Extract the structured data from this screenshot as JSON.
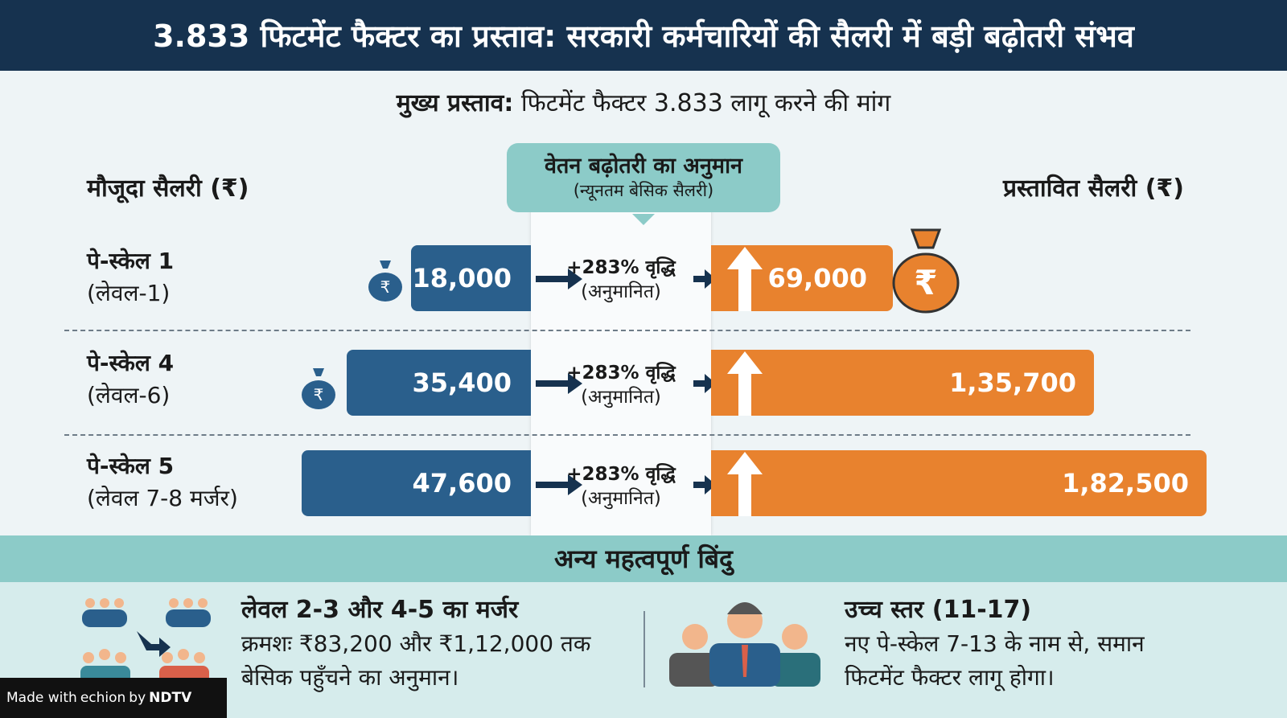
{
  "title": "3.833 फिटमेंट फैक्टर का प्रस्ताव: सरकारी कर्मचारियों की सैलरी में बड़ी बढ़ोतरी संभव",
  "subtitle": {
    "label": "मुख्य प्रस्ताव:",
    "text": "फिटमेंट फैक्टर 3.833 लागू करने की मांग"
  },
  "columns": {
    "current": "मौजूदा सैलरी (₹)",
    "estimate_title": "वेतन बढ़ोतरी का अनुमान",
    "estimate_sub": "(न्यूनतम बेसिक सैलरी)",
    "proposed": "प्रस्तावित सैलरी (₹)"
  },
  "rows": [
    {
      "scale": "पे-स्केल 1",
      "level": "(लेवल-1)",
      "current": "18,000",
      "growth": "+283% वृद्धि",
      "note": "(अनुमानित)",
      "proposed": "69,000"
    },
    {
      "scale": "पे-स्केल 4",
      "level": "(लेवल-6)",
      "current": "35,400",
      "growth": "+283% वृद्धि",
      "note": "(अनुमानित)",
      "proposed": "1,35,700"
    },
    {
      "scale": "पे-स्केल 5",
      "level": "(लेवल 7-8 मर्जर)",
      "current": "47,600",
      "growth": "+283% वृद्धि",
      "note": "(अनुमानित)",
      "proposed": "1,82,500"
    }
  ],
  "other": {
    "title": "अन्य महत्वपूर्ण बिंदु",
    "points": [
      {
        "heading": "लेवल 2-3 और 4-5 का मर्जर",
        "line1": "क्रमशः ₹83,200 और ₹1,12,000 तक",
        "line2": "बेसिक पहुँचने का अनुमान।",
        "icon": "group-merge-icon"
      },
      {
        "heading": "उच्च स्तर (11-17)",
        "line1": "नए पे-स्केल 7-13 के नाम से, समान",
        "line2": "फिटमेंट फैक्टर लागू होगा।",
        "icon": "officials-icon"
      }
    ]
  },
  "badge": {
    "made_with": "Made with",
    "brand": "echion",
    "by": "by",
    "org": "NDTV"
  },
  "colors": {
    "header": "#16324f",
    "current_bar": "#2a5f8c",
    "proposed_bar": "#e8822e",
    "accent": "#8ccbc8"
  }
}
